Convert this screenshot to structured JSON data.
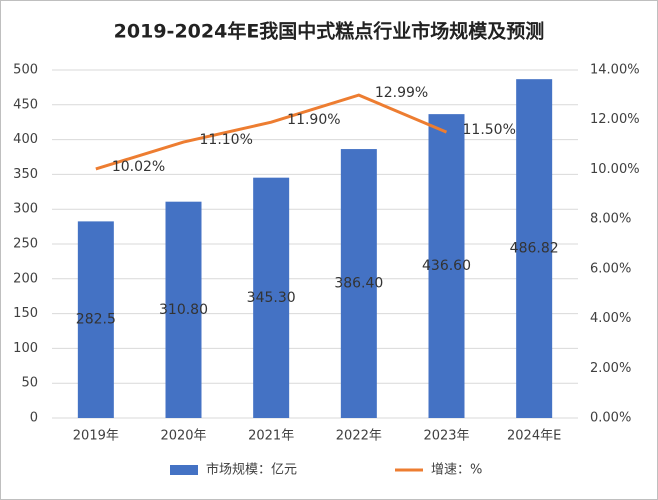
{
  "chart_data": {
    "type": "bar",
    "title": "2019-2024年E我国中式糕点行业市场规模及预测",
    "categories": [
      "2019年",
      "2020年",
      "2021年",
      "2022年",
      "2023年",
      "2024年E"
    ],
    "series": [
      {
        "name": "市场规模：亿元",
        "type": "bar",
        "color": "#4472c4",
        "values": [
          282.5,
          310.8,
          345.3,
          386.4,
          436.6,
          486.82
        ],
        "value_labels": [
          "282.5",
          "310.80",
          "345.30",
          "386.40",
          "436.60",
          "486.82"
        ]
      },
      {
        "name": "增速：%",
        "type": "line",
        "axis": "y2",
        "color": "#ed7d31",
        "values": [
          10.02,
          11.1,
          11.9,
          12.99,
          11.5,
          null
        ],
        "value_labels": [
          "10.02%",
          "11.10%",
          "11.90%",
          "12.99%",
          "11.50%",
          null
        ]
      }
    ],
    "ylim": [
      0,
      500
    ],
    "yticks": [
      0,
      50,
      100,
      150,
      200,
      250,
      300,
      350,
      400,
      450,
      500
    ],
    "y2lim": [
      0,
      14
    ],
    "y2ticks": [
      {
        "value": 0,
        "label": "0.00%"
      },
      {
        "value": 2,
        "label": "2.00%"
      },
      {
        "value": 4,
        "label": "4.00%"
      },
      {
        "value": 6,
        "label": "6.00%"
      },
      {
        "value": 8,
        "label": "8.00%"
      },
      {
        "value": 10,
        "label": "10.00%"
      },
      {
        "value": 12,
        "label": "12.00%"
      },
      {
        "value": 14,
        "label": "14.00%"
      }
    ],
    "grid": true,
    "legend": "bottom"
  }
}
